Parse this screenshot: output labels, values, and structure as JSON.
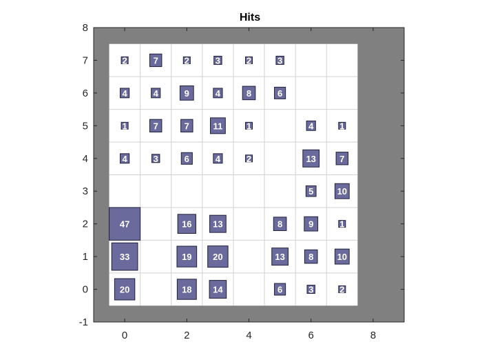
{
  "chart_data": {
    "type": "heatmap",
    "title": "Hits",
    "xlabel": "",
    "ylabel": "",
    "xlim": [
      -1,
      9
    ],
    "ylim": [
      -1,
      8
    ],
    "xticks": [
      0,
      2,
      4,
      6,
      8
    ],
    "yticks": [
      -1,
      0,
      1,
      2,
      3,
      4,
      5,
      6,
      7,
      8
    ],
    "grid": [
      0,
      7
    ],
    "max_hits": 47,
    "colors": {
      "background": "#808080",
      "plane": "#ffffff",
      "hex_fill": "#6a6a9c",
      "hex_edge": "#1f1f3a",
      "grid_line": "#d2d2d2",
      "label": "#ffffff"
    },
    "cells": [
      {
        "x": 0,
        "y": 7,
        "hits": 2
      },
      {
        "x": 1,
        "y": 7,
        "hits": 7
      },
      {
        "x": 2,
        "y": 7,
        "hits": 2
      },
      {
        "x": 3,
        "y": 7,
        "hits": 3
      },
      {
        "x": 4,
        "y": 7,
        "hits": 2
      },
      {
        "x": 5,
        "y": 7,
        "hits": 3
      },
      {
        "x": 0,
        "y": 6,
        "hits": 4
      },
      {
        "x": 1,
        "y": 6,
        "hits": 4
      },
      {
        "x": 2,
        "y": 6,
        "hits": 9
      },
      {
        "x": 3,
        "y": 6,
        "hits": 4
      },
      {
        "x": 4,
        "y": 6,
        "hits": 8
      },
      {
        "x": 5,
        "y": 6,
        "hits": 6
      },
      {
        "x": 0,
        "y": 5,
        "hits": 1
      },
      {
        "x": 1,
        "y": 5,
        "hits": 7
      },
      {
        "x": 2,
        "y": 5,
        "hits": 7
      },
      {
        "x": 3,
        "y": 5,
        "hits": 11
      },
      {
        "x": 4,
        "y": 5,
        "hits": 1
      },
      {
        "x": 6,
        "y": 5,
        "hits": 4
      },
      {
        "x": 7,
        "y": 5,
        "hits": 1
      },
      {
        "x": 0,
        "y": 4,
        "hits": 4
      },
      {
        "x": 1,
        "y": 4,
        "hits": 3
      },
      {
        "x": 2,
        "y": 4,
        "hits": 6
      },
      {
        "x": 3,
        "y": 4,
        "hits": 4
      },
      {
        "x": 4,
        "y": 4,
        "hits": 2
      },
      {
        "x": 6,
        "y": 4,
        "hits": 13
      },
      {
        "x": 7,
        "y": 4,
        "hits": 7
      },
      {
        "x": 6,
        "y": 3,
        "hits": 5
      },
      {
        "x": 7,
        "y": 3,
        "hits": 10
      },
      {
        "x": 0,
        "y": 2,
        "hits": 47
      },
      {
        "x": 2,
        "y": 2,
        "hits": 16
      },
      {
        "x": 3,
        "y": 2,
        "hits": 13
      },
      {
        "x": 5,
        "y": 2,
        "hits": 8
      },
      {
        "x": 6,
        "y": 2,
        "hits": 9
      },
      {
        "x": 7,
        "y": 2,
        "hits": 1
      },
      {
        "x": 0,
        "y": 1,
        "hits": 33
      },
      {
        "x": 2,
        "y": 1,
        "hits": 19
      },
      {
        "x": 3,
        "y": 1,
        "hits": 20
      },
      {
        "x": 5,
        "y": 1,
        "hits": 13
      },
      {
        "x": 6,
        "y": 1,
        "hits": 8
      },
      {
        "x": 7,
        "y": 1,
        "hits": 10
      },
      {
        "x": 0,
        "y": 0,
        "hits": 20
      },
      {
        "x": 2,
        "y": 0,
        "hits": 18
      },
      {
        "x": 3,
        "y": 0,
        "hits": 14
      },
      {
        "x": 5,
        "y": 0,
        "hits": 6
      },
      {
        "x": 6,
        "y": 0,
        "hits": 3
      },
      {
        "x": 7,
        "y": 0,
        "hits": 2
      }
    ]
  }
}
